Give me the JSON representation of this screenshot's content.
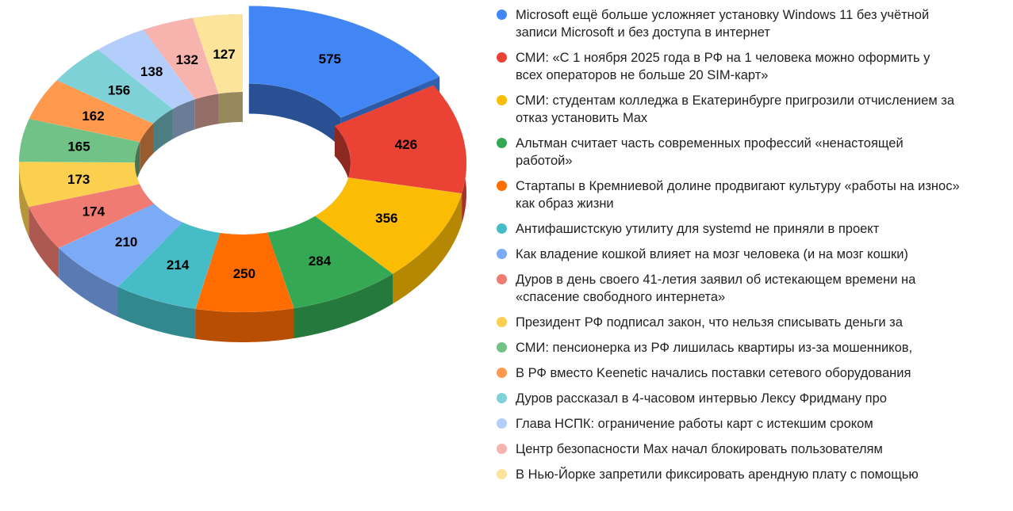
{
  "chart_data": {
    "type": "pie",
    "variant": "3d-donut",
    "title": "",
    "legend_position": "right",
    "categories": [
      "Microsoft ещё больше усложняет установку Windows 11 без учётной записи Microsoft и без доступа в интернет",
      "СМИ: «С 1 ноября 2025 года в РФ на 1 человека можно оформить у всех операторов не больше 20 SIM-карт»",
      "СМИ: студентам колледжа в Екатеринбурге пригрозили отчислением за отказ установить Max",
      "Альтман считает часть современных профессий «ненастоящей работой»",
      "Стартапы в Кремниевой долине продвигают культуру «работы на износ» как образ жизни",
      "Антифашистскую утилиту для systemd не приняли в проект",
      "Как владение кошкой влияет на мозг человека (и на мозг кошки)",
      "Дуров в день своего 41-летия заявил об истекающем времени на «спасение свободного интернета»",
      "Президент РФ подписал закон, что нельзя списывать деньги за",
      "СМИ: пенсионерка из РФ лишилась квартиры из-за мошенников,",
      "В РФ вместо Keenetic начались поставки сетевого оборудования",
      "Дуров рассказал в 4-часовом интервью Лексу Фридману про",
      "Глава НСПК: ограничение работы карт с истекшим сроком",
      "Центр безопасности Max начал блокировать пользователям",
      "В Нью-Йорке запретили фиксировать арендную плату с помощью"
    ],
    "values": [
      575,
      426,
      356,
      284,
      250,
      214,
      210,
      174,
      173,
      165,
      162,
      156,
      138,
      132,
      127
    ],
    "colors": [
      "#4285f4",
      "#ea4335",
      "#fbbc04",
      "#34a853",
      "#ff6d01",
      "#46bdc6",
      "#7baaf7",
      "#f07b72",
      "#fcd04f",
      "#71c287",
      "#ff994d",
      "#7ed1d7",
      "#b3cefb",
      "#f7b4ae",
      "#fde49b"
    ],
    "exploded_index": 0
  },
  "legend": {
    "items": [
      {
        "label": "Microsoft ещё больше усложняет установку Windows 11 без учётной записи Microsoft и без доступа в интернет",
        "color": "#4285f4"
      },
      {
        "label": "СМИ: «С 1 ноября 2025 года в РФ на 1 человека можно оформить у всех операторов не больше 20 SIM-карт»",
        "color": "#ea4335"
      },
      {
        "label": "СМИ: студентам колледжа в Екатеринбурге пригрозили отчислением за отказ установить Max",
        "color": "#fbbc04"
      },
      {
        "label": "Альтман считает часть современных профессий «ненастоящей работой»",
        "color": "#34a853"
      },
      {
        "label": "Стартапы в Кремниевой долине продвигают культуру «работы на износ» как образ жизни",
        "color": "#ff6d01"
      },
      {
        "label": "Антифашистскую утилиту для systemd не приняли в проект",
        "color": "#46bdc6"
      },
      {
        "label": "Как владение кошкой влияет на мозг человека (и на мозг кошки)",
        "color": "#7baaf7"
      },
      {
        "label": "Дуров в день своего 41-летия заявил об истекающем времени на «спасение свободного интернета»",
        "color": "#f07b72"
      },
      {
        "label": "Президент РФ подписал закон, что нельзя списывать деньги за",
        "color": "#fcd04f"
      },
      {
        "label": "СМИ: пенсионерка из РФ лишилась квартиры из-за мошенников,",
        "color": "#71c287"
      },
      {
        "label": "В РФ вместо Keenetic начались поставки сетевого оборудования",
        "color": "#ff994d"
      },
      {
        "label": "Дуров рассказал в 4-часовом интервью Лексу Фридману про",
        "color": "#7ed1d7"
      },
      {
        "label": "Глава НСПК: ограничение работы карт с истекшим сроком",
        "color": "#b3cefb"
      },
      {
        "label": "Центр безопасности Max начал блокировать пользователям",
        "color": "#f7b4ae"
      },
      {
        "label": "В Нью-Йорке запретили фиксировать арендную плату с помощью",
        "color": "#fde49b"
      }
    ]
  }
}
